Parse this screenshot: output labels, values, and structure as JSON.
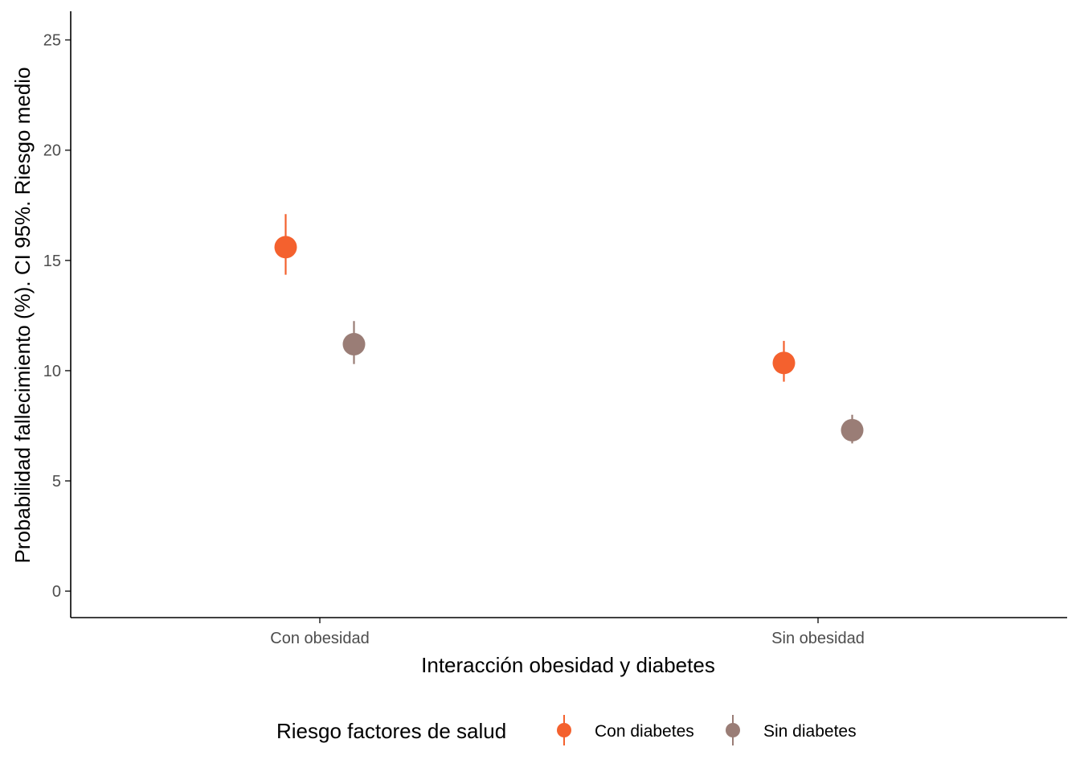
{
  "chart_data": {
    "type": "scatter",
    "xlabel": "Interacción obesidad y diabetes",
    "ylabel": "Probabilidad fallecimiento (%). CI 95%. Riesgo medio",
    "ylim": [
      -1.2,
      26.3
    ],
    "yticks": [
      0,
      5,
      10,
      15,
      20,
      25
    ],
    "categories": [
      "Con obesidad",
      "Sin obesidad"
    ],
    "grid": false,
    "legend": {
      "title": "Riesgo factores de salud",
      "position": "bottom"
    },
    "series": [
      {
        "name": "Con diabetes",
        "color": "#f4612e",
        "values": [
          15.6,
          10.35
        ],
        "lower": [
          14.35,
          9.5
        ],
        "upper": [
          17.1,
          11.35
        ]
      },
      {
        "name": "Sin diabetes",
        "color": "#9a7d76",
        "values": [
          11.2,
          7.3
        ],
        "lower": [
          10.3,
          6.7
        ],
        "upper": [
          12.25,
          8.0
        ]
      }
    ]
  }
}
